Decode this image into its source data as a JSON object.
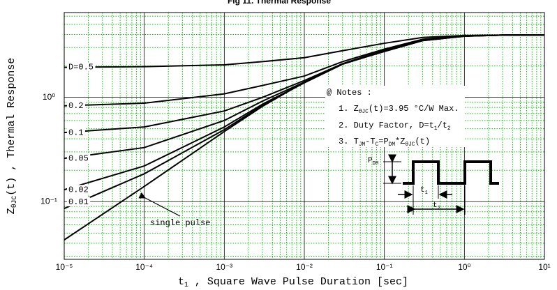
{
  "chart_data": {
    "type": "line",
    "title": "Fig 11. Thermal Response",
    "y_label": [
      "Z",
      "θJC",
      "(t) ,   Thermal Response"
    ],
    "x_label": [
      "t",
      "1",
      " , Square Wave Pulse Duration   [sec]"
    ],
    "log_x": true,
    "log_y": true,
    "grid": true,
    "major_grid_color": "#000000",
    "minor_grid_color": "#00c800",
    "xlim": [
      1e-05,
      10
    ],
    "ylim": [
      0.028,
      6.5
    ],
    "xticks": [
      {
        "value": 1e-05,
        "label": "10⁻⁵"
      },
      {
        "value": 0.0001,
        "label": "10⁻⁴"
      },
      {
        "value": 0.001,
        "label": "10⁻³"
      },
      {
        "value": 0.01,
        "label": "10⁻²"
      },
      {
        "value": 0.1,
        "label": "10⁻¹"
      },
      {
        "value": 1,
        "label": "10⁰"
      },
      {
        "value": 10,
        "label": "10¹"
      }
    ],
    "yticks": [
      {
        "value": 0.1,
        "label": "10⁻¹"
      },
      {
        "value": 1,
        "label": "10⁰"
      }
    ],
    "x": [
      1e-05,
      0.0001,
      0.001,
      0.003,
      0.01,
      0.03,
      0.1,
      0.3,
      1,
      3,
      10
    ],
    "series": [
      {
        "name": "D=0.5",
        "color": "#000000",
        "values": [
          1.94,
          1.97,
          2.05,
          2.2,
          2.4,
          2.8,
          3.3,
          3.75,
          3.92,
          3.95,
          3.95
        ]
      },
      {
        "name": "0.2",
        "color": "#000000",
        "values": [
          0.83,
          0.88,
          1.08,
          1.3,
          1.6,
          2.2,
          2.9,
          3.6,
          3.9,
          3.95,
          3.95
        ]
      },
      {
        "name": "0.1",
        "color": "#000000",
        "values": [
          0.46,
          0.52,
          0.74,
          1.0,
          1.45,
          2.1,
          2.85,
          3.55,
          3.88,
          3.95,
          3.95
        ]
      },
      {
        "name": "0.05",
        "color": "#000000",
        "values": [
          0.26,
          0.33,
          0.6,
          0.92,
          1.4,
          2.1,
          2.8,
          3.52,
          3.87,
          3.95,
          3.95
        ]
      },
      {
        "name": "0.02",
        "color": "#000000",
        "values": [
          0.13,
          0.22,
          0.52,
          0.86,
          1.38,
          2.08,
          2.77,
          3.5,
          3.86,
          3.95,
          3.95
        ]
      },
      {
        "name": "0.01",
        "color": "#000000",
        "values": [
          0.086,
          0.185,
          0.49,
          0.84,
          1.38,
          2.08,
          2.76,
          3.5,
          3.86,
          3.95,
          3.95
        ]
      },
      {
        "name": "single pulse",
        "color": "#000000",
        "values": [
          0.043,
          0.14,
          0.47,
          0.82,
          1.4,
          2.1,
          2.75,
          3.5,
          3.85,
          3.95,
          3.95
        ]
      }
    ],
    "notes_title": "@ Notes :",
    "notes": [
      [
        "1. Z",
        "θJC",
        "(t)=3.95 °C/W Max."
      ],
      [
        "2. Duty Factor, D=t",
        "1",
        "/t",
        "2"
      ],
      [
        "3. T",
        "JM",
        "-T",
        "C",
        "=P",
        "DM",
        "*Z",
        "θJC",
        "(t)"
      ]
    ],
    "pulse_labels": {
      "pdm": [
        "P",
        "DM"
      ],
      "t1": [
        "t",
        "1"
      ],
      "t2": [
        "t",
        "2"
      ]
    }
  }
}
